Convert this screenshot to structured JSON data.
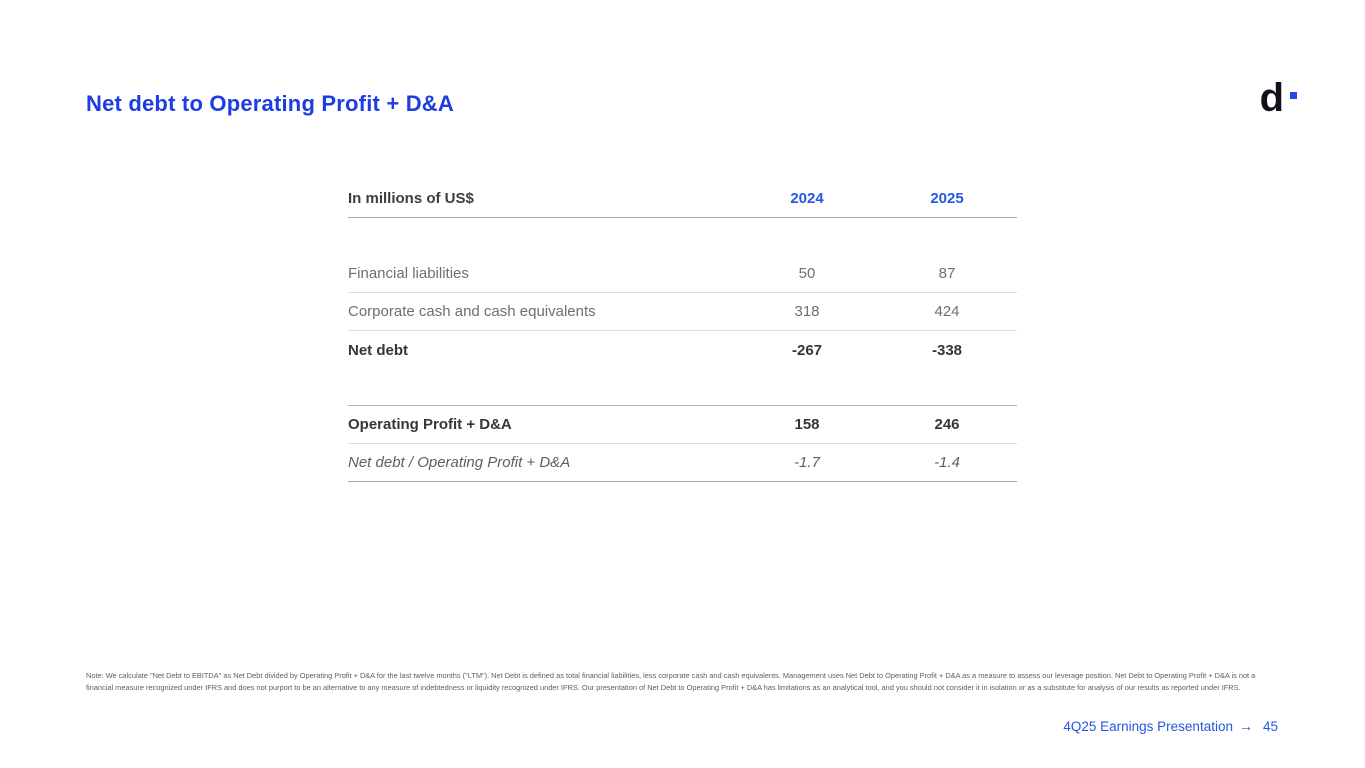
{
  "slide": {
    "title": "Net debt to Operating Profit + D&A",
    "logo_text": "d",
    "note": "Note: We calculate \"Net Debt to EBITDA\" as Net Debt divided by Operating Profit + D&A for the last twelve months (\"LTM\"). Net Debt is defined as total financial liabilities, less corporate cash and cash equivalents. Management uses Net Debt to Operating Profit + D&A as a measure to assess our leverage position. Net Debt to Operating Profit + D&A is not a financial measure recognized under IFRS and does not purport to be an alternative to any measure of indebtedness or liquidity recognized under IFRS. Our presentation of Net Debt to Operating Profit + D&A has limitations as an analytical tool, and you should not consider it in isolation or as a substitute for analysis of our results as reported under IFRS.",
    "footer": {
      "label": "4Q25 Earnings Presentation",
      "arrow": "→",
      "page": "45"
    }
  },
  "table": {
    "header": {
      "label": "In millions of US$",
      "col_2024": "2024",
      "col_2025": "2025"
    },
    "rows": [
      {
        "label": "Financial liabilities",
        "v2024": "50",
        "v2025": "87",
        "style": "regular"
      },
      {
        "label": "Corporate cash and cash equivalents",
        "v2024": "318",
        "v2025": "424",
        "style": "regular"
      },
      {
        "label": "Net debt",
        "v2024": "-267",
        "v2025": "-338",
        "style": "bold"
      },
      {
        "label": "Operating Profit + D&A",
        "v2024": "158",
        "v2025": "246",
        "style": "bold"
      },
      {
        "label": "Net debt / Operating Profit + D&A",
        "v2024": "-1.7",
        "v2025": "-1.4",
        "style": "italic"
      }
    ]
  },
  "colors": {
    "title_blue": "#1d3ce4",
    "accent_blue": "#2457e3",
    "logo_dot_blue": "#2547e8",
    "text_dark": "#363636",
    "text_gray": "#6f6f6f",
    "line_light": "#dcdcdc",
    "line_dark": "#ababab",
    "background": "#ffffff"
  }
}
